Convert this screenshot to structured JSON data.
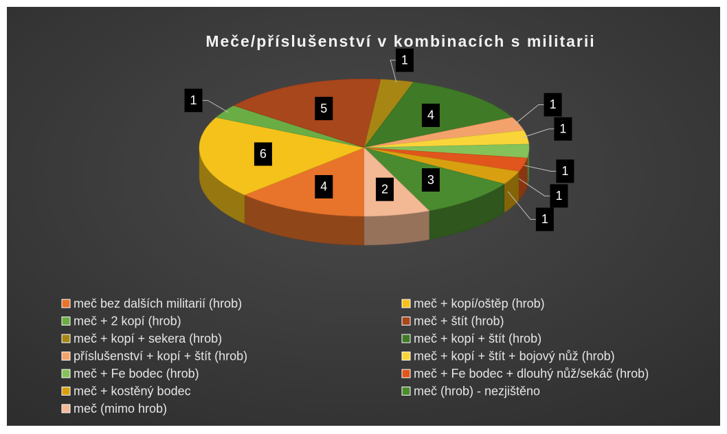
{
  "chart_data": {
    "type": "pie",
    "title": "Meče/příslušenství v kombinacích s militarii",
    "categories": [
      "meč bez dalších militarií (hrob)",
      "meč + kopí/oštěp (hrob)",
      "meč + 2 kopí (hrob)",
      "meč + štít (hrob)",
      "meč + kopí + sekera (hrob)",
      "meč + kopí + štít (hrob)",
      "příslušenství + kopí + štít (hrob)",
      "meč + kopí + štít + bojový nůž (hrob)",
      "meč + Fe bodec (hrob)",
      "meč + Fe bodec + dlouhý nůž/sekáč (hrob)",
      "meč + kostěný bodec",
      "meč (hrob) - nezjištěno",
      "meč (mimo hrob)"
    ],
    "values": [
      4,
      6,
      1,
      5,
      1,
      4,
      1,
      1,
      1,
      1,
      1,
      3,
      2
    ],
    "colors": [
      "#e8732a",
      "#f5c21b",
      "#6aad45",
      "#a8461c",
      "#a88614",
      "#3f7a26",
      "#f4a26c",
      "#fad53a",
      "#86c25a",
      "#e0561c",
      "#d8a010",
      "#4b8b30",
      "#f3b894"
    ],
    "legend": "bottom"
  }
}
